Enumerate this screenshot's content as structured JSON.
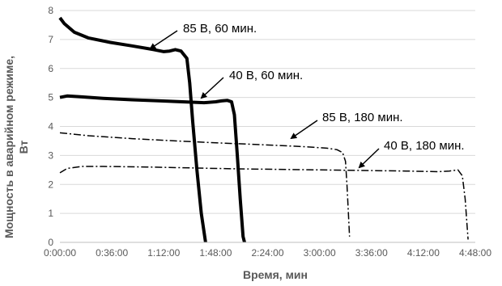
{
  "chart_data": {
    "type": "line",
    "xlabel": "Время, мин",
    "ylabel_line1": "Мощность в аварийном режиме,",
    "ylabel_line2": "Вт",
    "xlim": [
      0,
      288
    ],
    "ylim": [
      0,
      8
    ],
    "x_ticks": [
      {
        "value": 0,
        "label": "0:00:00"
      },
      {
        "value": 36,
        "label": "0:36:00"
      },
      {
        "value": 72,
        "label": "1:12:00"
      },
      {
        "value": 108,
        "label": "1:48:00"
      },
      {
        "value": 144,
        "label": "2:24:00"
      },
      {
        "value": 180,
        "label": "3:00:00"
      },
      {
        "value": 216,
        "label": "3:36:00"
      },
      {
        "value": 252,
        "label": "4:12:00"
      },
      {
        "value": 288,
        "label": "4:48:00"
      }
    ],
    "y_ticks": [
      0,
      1,
      2,
      3,
      4,
      5,
      6,
      7,
      8
    ],
    "grid": "horizontal",
    "series": [
      {
        "name": "85 В, 60 мин.",
        "style": "solid-thick",
        "color": "#000000",
        "points": [
          [
            0,
            7.75
          ],
          [
            3,
            7.55
          ],
          [
            10,
            7.25
          ],
          [
            20,
            7.05
          ],
          [
            35,
            6.9
          ],
          [
            50,
            6.78
          ],
          [
            65,
            6.65
          ],
          [
            72,
            6.58
          ],
          [
            76,
            6.6
          ],
          [
            80,
            6.65
          ],
          [
            84,
            6.6
          ],
          [
            88,
            6.35
          ],
          [
            90,
            5.5
          ],
          [
            92,
            4.2
          ],
          [
            95,
            2.5
          ],
          [
            98,
            1.0
          ],
          [
            101,
            0.0
          ]
        ]
      },
      {
        "name": "40 В, 60 мин.",
        "style": "solid-thick",
        "color": "#000000",
        "points": [
          [
            0,
            5.0
          ],
          [
            5,
            5.05
          ],
          [
            15,
            5.02
          ],
          [
            30,
            4.97
          ],
          [
            50,
            4.92
          ],
          [
            70,
            4.88
          ],
          [
            85,
            4.85
          ],
          [
            100,
            4.82
          ],
          [
            108,
            4.85
          ],
          [
            112,
            4.88
          ],
          [
            116,
            4.9
          ],
          [
            119,
            4.85
          ],
          [
            121,
            4.4
          ],
          [
            123,
            3.0
          ],
          [
            125,
            1.5
          ],
          [
            127,
            0.2
          ],
          [
            128,
            0.0
          ]
        ]
      },
      {
        "name": "85 В, 180 мин.",
        "style": "dashdot",
        "color": "#000000",
        "points": [
          [
            0,
            3.78
          ],
          [
            20,
            3.68
          ],
          [
            50,
            3.58
          ],
          [
            80,
            3.5
          ],
          [
            110,
            3.43
          ],
          [
            140,
            3.37
          ],
          [
            170,
            3.3
          ],
          [
            185,
            3.25
          ],
          [
            192,
            3.2
          ],
          [
            196,
            3.1
          ],
          [
            198,
            2.8
          ],
          [
            199,
            2.0
          ],
          [
            200,
            1.0
          ],
          [
            200.8,
            0.2
          ]
        ]
      },
      {
        "name": "40 В, 180 мин.",
        "style": "dashdot",
        "color": "#000000",
        "points": [
          [
            0,
            2.4
          ],
          [
            5,
            2.55
          ],
          [
            15,
            2.62
          ],
          [
            30,
            2.62
          ],
          [
            60,
            2.6
          ],
          [
            90,
            2.57
          ],
          [
            120,
            2.54
          ],
          [
            150,
            2.52
          ],
          [
            180,
            2.5
          ],
          [
            210,
            2.48
          ],
          [
            240,
            2.46
          ],
          [
            262,
            2.44
          ],
          [
            270,
            2.46
          ],
          [
            276,
            2.5
          ],
          [
            279,
            2.3
          ],
          [
            281,
            1.5
          ],
          [
            282,
            0.8
          ],
          [
            283,
            0.1
          ]
        ]
      }
    ],
    "annotations": [
      {
        "text": "85 В, 60 мин.",
        "series": 0
      },
      {
        "text": "40 В, 60 мин.",
        "series": 1
      },
      {
        "text": "85 В, 180 мин.",
        "series": 2
      },
      {
        "text": "40 В, 180 мин.",
        "series": 3
      }
    ]
  }
}
